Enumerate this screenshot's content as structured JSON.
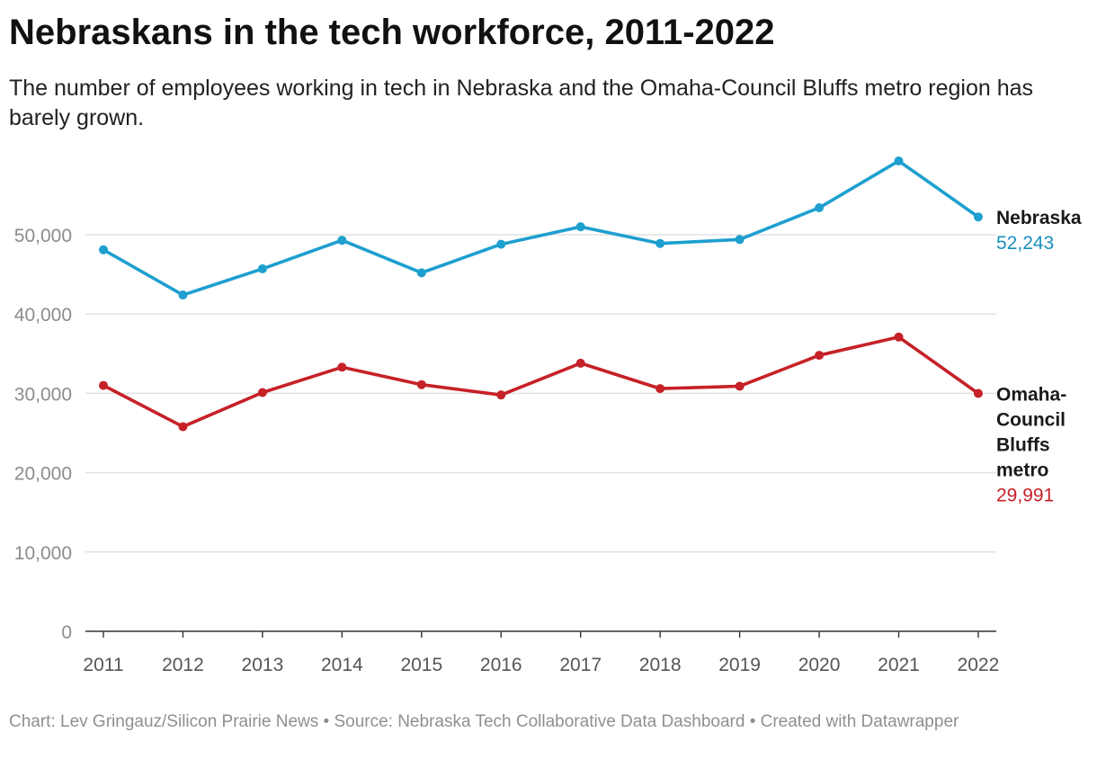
{
  "title": "Nebraskans in the tech workforce, 2011-2022",
  "subtitle": "The number of employees working in tech in Nebraska and the Omaha-Council Bluffs metro region has barely grown.",
  "footer": "Chart: Lev Gringauz/Silicon Prairie News • Source: Nebraska Tech Collaborative Data Dashboard • Created with Datawrapper",
  "chart_data": {
    "type": "line",
    "title": "Nebraskans in the tech workforce, 2011-2022",
    "xlabel": "",
    "ylabel": "",
    "ylim": [
      0,
      60000
    ],
    "yticks": [
      0,
      10000,
      20000,
      30000,
      40000,
      50000
    ],
    "ytick_labels": [
      "0",
      "10,000",
      "20,000",
      "30,000",
      "40,000",
      "50,000"
    ],
    "grid": true,
    "legend": "direct labels at right end of lines",
    "x": [
      "2011",
      "2012",
      "2013",
      "2014",
      "2015",
      "2016",
      "2017",
      "2018",
      "2019",
      "2020",
      "2021",
      "2022"
    ],
    "series": [
      {
        "name": "Nebraska",
        "label_lines": [
          "Nebraska"
        ],
        "end_label": "52,243",
        "color": "#1e9fcf",
        "label_color": "#1a8fbd",
        "values": [
          48100,
          42400,
          45700,
          49300,
          45200,
          48800,
          51000,
          48900,
          49400,
          53400,
          59300,
          52243
        ]
      },
      {
        "name": "Omaha-Council Bluffs metro",
        "label_lines": [
          "Omaha-",
          "Council",
          "Bluffs",
          "metro"
        ],
        "end_label": "29,991",
        "color": "#c62127",
        "label_color": "#c62127",
        "values": [
          31000,
          25800,
          30100,
          33300,
          31100,
          29800,
          33800,
          30600,
          30900,
          34800,
          37100,
          29991
        ]
      }
    ]
  }
}
